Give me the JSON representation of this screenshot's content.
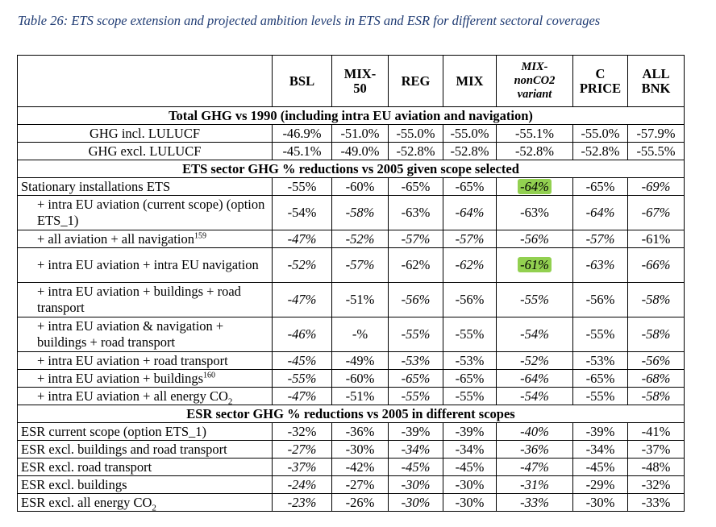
{
  "caption": "Table 26: ETS scope extension and projected ambition levels in ETS and ESR for different sectoral coverages",
  "headers": [
    {
      "label": "BSL",
      "italic": false
    },
    {
      "label": "MIX-\n50",
      "italic": false
    },
    {
      "label": "REG",
      "italic": false
    },
    {
      "label": "MIX",
      "italic": false
    },
    {
      "label": "MIX-\nnonCO2\nvariant",
      "italic": true
    },
    {
      "label": "C\nPRICE",
      "italic": false
    },
    {
      "label": "ALL\nBNK",
      "italic": false
    }
  ],
  "highlight_color": "#92d050",
  "rows": [
    {
      "type": "section",
      "label": "Total GHG vs 1990 (including intra EU aviation and navigation)"
    },
    {
      "type": "data",
      "label": "GHG incl. LULUCF",
      "align": "center",
      "height": 1,
      "cells": [
        [
          "-46.9%",
          0,
          0
        ],
        [
          "-51.0%",
          0,
          0
        ],
        [
          "-55.0%",
          0,
          0
        ],
        [
          "-55.0%",
          0,
          0
        ],
        [
          "-55.1%",
          0,
          0
        ],
        [
          "-55.0%",
          0,
          0
        ],
        [
          "-57.9%",
          0,
          0
        ]
      ]
    },
    {
      "type": "data",
      "label": "GHG excl. LULUCF",
      "align": "center",
      "height": 1,
      "cells": [
        [
          "-45.1%",
          0,
          0
        ],
        [
          "-49.0%",
          0,
          0
        ],
        [
          "-52.8%",
          0,
          0
        ],
        [
          "-52.8%",
          0,
          0
        ],
        [
          "-52.8%",
          0,
          0
        ],
        [
          "-52.8%",
          0,
          0
        ],
        [
          "-55.5%",
          0,
          0
        ]
      ]
    },
    {
      "type": "section",
      "label": "ETS sector GHG % reductions vs 2005 given scope selected"
    },
    {
      "type": "data",
      "label": "Stationary installations ETS",
      "align": "left",
      "height": 1,
      "cells": [
        [
          "-55%",
          0,
          0
        ],
        [
          "-60%",
          0,
          0
        ],
        [
          "-65%",
          0,
          0
        ],
        [
          "-65%",
          0,
          0
        ],
        [
          "-64%",
          1,
          1
        ],
        [
          "-65%",
          0,
          0
        ],
        [
          "-69%",
          1,
          0
        ]
      ]
    },
    {
      "type": "data",
      "label": "+ intra EU aviation (current scope) (option ETS_1)",
      "align": "indent",
      "height": 2,
      "cells": [
        [
          "-54%",
          0,
          0
        ],
        [
          "-58%",
          1,
          0
        ],
        [
          "-63%",
          0,
          0
        ],
        [
          "-64%",
          1,
          0
        ],
        [
          "-63%",
          0,
          0
        ],
        [
          "-64%",
          1,
          0
        ],
        [
          "-67%",
          1,
          0
        ]
      ]
    },
    {
      "type": "data",
      "label": "+ all aviation + all navigation",
      "sup": "159",
      "align": "indent",
      "height": 1,
      "cells": [
        [
          "-47%",
          1,
          0
        ],
        [
          "-52%",
          1,
          0
        ],
        [
          "-57%",
          1,
          0
        ],
        [
          "-57%",
          1,
          0
        ],
        [
          "-56%",
          1,
          0
        ],
        [
          "-57%",
          1,
          0
        ],
        [
          "-61%",
          0,
          0
        ]
      ]
    },
    {
      "type": "data",
      "label": "+ intra EU aviation + intra EU navigation",
      "align": "indent",
      "height": 2,
      "cells": [
        [
          "-52%",
          1,
          0
        ],
        [
          "-57%",
          1,
          0
        ],
        [
          "-62%",
          0,
          0
        ],
        [
          "-62%",
          1,
          0
        ],
        [
          "-61%",
          1,
          1
        ],
        [
          "-63%",
          1,
          0
        ],
        [
          "-66%",
          1,
          0
        ]
      ]
    },
    {
      "type": "data",
      "label": "+ intra EU aviation + buildings + road transport",
      "align": "indent",
      "height": 2,
      "cells": [
        [
          "-47%",
          1,
          0
        ],
        [
          "-51%",
          0,
          0
        ],
        [
          "-56%",
          1,
          0
        ],
        [
          "-56%",
          0,
          0
        ],
        [
          "-55%",
          1,
          0
        ],
        [
          "-56%",
          0,
          0
        ],
        [
          "-58%",
          1,
          0
        ]
      ]
    },
    {
      "type": "data",
      "label": "+ intra EU aviation & navigation + buildings + road transport",
      "align": "indent",
      "height": 2,
      "cells": [
        [
          "-46%",
          1,
          0
        ],
        [
          "-%",
          0,
          0
        ],
        [
          "-55%",
          1,
          0
        ],
        [
          "-55%",
          0,
          0
        ],
        [
          "-54%",
          1,
          0
        ],
        [
          "-55%",
          0,
          0
        ],
        [
          "-58%",
          1,
          0
        ]
      ]
    },
    {
      "type": "data",
      "label": "+ intra EU aviation + road transport",
      "align": "indent",
      "height": 1,
      "cells": [
        [
          "-45%",
          1,
          0
        ],
        [
          "-49%",
          0,
          0
        ],
        [
          "-53%",
          1,
          0
        ],
        [
          "-53%",
          0,
          0
        ],
        [
          "-52%",
          1,
          0
        ],
        [
          "-53%",
          0,
          0
        ],
        [
          "-56%",
          1,
          0
        ]
      ]
    },
    {
      "type": "data",
      "label": "+ intra EU aviation + buildings",
      "sup": "160",
      "align": "indent",
      "height": 1,
      "cells": [
        [
          "-55%",
          1,
          0
        ],
        [
          "-60%",
          0,
          0
        ],
        [
          "-65%",
          1,
          0
        ],
        [
          "-65%",
          0,
          0
        ],
        [
          "-64%",
          1,
          0
        ],
        [
          "-65%",
          0,
          0
        ],
        [
          "-68%",
          1,
          0
        ]
      ]
    },
    {
      "type": "data",
      "label": "+ intra EU aviation + all energy CO",
      "sub": "2",
      "align": "indent",
      "height": 1,
      "cells": [
        [
          "-47%",
          1,
          0
        ],
        [
          "-51%",
          0,
          0
        ],
        [
          "-55%",
          1,
          0
        ],
        [
          "-55%",
          0,
          0
        ],
        [
          "-54%",
          1,
          0
        ],
        [
          "-55%",
          0,
          0
        ],
        [
          "-58%",
          1,
          0
        ]
      ]
    },
    {
      "type": "section",
      "label": "ESR sector GHG % reductions vs 2005 in different scopes"
    },
    {
      "type": "data",
      "label": "ESR current scope (option ETS_1)",
      "align": "left",
      "height": 1,
      "cells": [
        [
          "-32%",
          0,
          0
        ],
        [
          "-36%",
          0,
          0
        ],
        [
          "-39%",
          0,
          0
        ],
        [
          "-39%",
          0,
          0
        ],
        [
          "-40%",
          1,
          0
        ],
        [
          "-39%",
          0,
          0
        ],
        [
          "-41%",
          0,
          0
        ]
      ]
    },
    {
      "type": "data",
      "label": "ESR excl. buildings and road transport",
      "align": "left",
      "height": 1,
      "cells": [
        [
          "-27%",
          1,
          0
        ],
        [
          "-30%",
          0,
          0
        ],
        [
          "-34%",
          1,
          0
        ],
        [
          "-34%",
          0,
          0
        ],
        [
          "-36%",
          1,
          0
        ],
        [
          "-34%",
          0,
          0
        ],
        [
          "-37%",
          0,
          0
        ]
      ]
    },
    {
      "type": "data",
      "label": "ESR excl. road transport",
      "align": "left",
      "height": 1,
      "cells": [
        [
          "-37%",
          1,
          0
        ],
        [
          "-42%",
          0,
          0
        ],
        [
          "-45%",
          1,
          0
        ],
        [
          "-45%",
          0,
          0
        ],
        [
          "-47%",
          1,
          0
        ],
        [
          "-45%",
          0,
          0
        ],
        [
          "-48%",
          0,
          0
        ]
      ]
    },
    {
      "type": "data",
      "label": "ESR excl. buildings",
      "align": "left",
      "height": 1,
      "cells": [
        [
          "-24%",
          1,
          0
        ],
        [
          "-27%",
          0,
          0
        ],
        [
          "-30%",
          1,
          0
        ],
        [
          "-30%",
          0,
          0
        ],
        [
          "-31%",
          1,
          0
        ],
        [
          "-29%",
          0,
          0
        ],
        [
          "-32%",
          0,
          0
        ]
      ]
    },
    {
      "type": "data",
      "label": "ESR excl. all energy CO",
      "sub": "2",
      "align": "left",
      "height": 1,
      "cells": [
        [
          "-23%",
          1,
          0
        ],
        [
          "-26%",
          0,
          0
        ],
        [
          "-30%",
          1,
          0
        ],
        [
          "-30%",
          0,
          0
        ],
        [
          "-33%",
          1,
          0
        ],
        [
          "-30%",
          0,
          0
        ],
        [
          "-33%",
          0,
          0
        ]
      ]
    }
  ]
}
